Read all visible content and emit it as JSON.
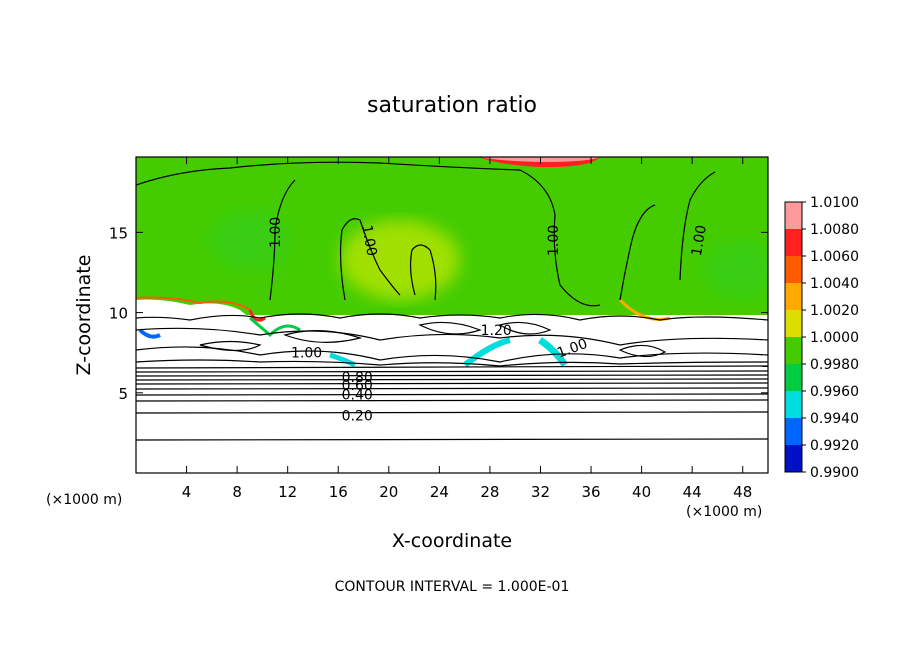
{
  "chart_data": {
    "type": "heatmap",
    "title": "saturation ratio",
    "xlabel": "X-coordinate",
    "ylabel": "Z-coordinate",
    "x_unit": "(×1000 m)",
    "y_unit": "(×1000 m)",
    "xlim": [
      0,
      50
    ],
    "ylim": [
      0,
      19.7
    ],
    "x_ticks": [
      4,
      8,
      12,
      16,
      20,
      24,
      28,
      32,
      36,
      40,
      44,
      48
    ],
    "y_ticks": [
      5,
      10,
      15
    ],
    "colorbar": {
      "levels": [
        "1.0100",
        "1.0080",
        "1.0060",
        "1.0040",
        "1.0020",
        "1.0000",
        "0.9980",
        "0.9960",
        "0.9940",
        "0.9920",
        "0.9900"
      ],
      "colors": [
        "#ff9a9a",
        "#ff2020",
        "#ff5a00",
        "#ffaa00",
        "#dddd00",
        "#44cc00",
        "#00cc44",
        "#00dddd",
        "#0066ff",
        "#0010c8",
        "#6a00aa"
      ]
    },
    "contour_labels": [
      {
        "text": "1.00",
        "x": 11,
        "z": 15.0,
        "rotate": -90
      },
      {
        "text": "1.00",
        "x": 18.5,
        "z": 14.5,
        "rotate": 80
      },
      {
        "text": "1.00",
        "x": 33,
        "z": 14.5,
        "rotate": -90
      },
      {
        "text": "1.00",
        "x": 44.5,
        "z": 14.5,
        "rotate": -80
      },
      {
        "text": "1.20",
        "x": 28.5,
        "z": 8.9,
        "rotate": 0
      },
      {
        "text": "1.00",
        "x": 13.5,
        "z": 7.5,
        "rotate": 0
      },
      {
        "text": "1.00",
        "x": 34.5,
        "z": 7.8,
        "rotate": -20
      },
      {
        "text": "0.80",
        "x": 17.5,
        "z": 6.0,
        "rotate": 0
      },
      {
        "text": "0.60",
        "x": 17.5,
        "z": 5.5,
        "rotate": 0
      },
      {
        "text": "0.40",
        "x": 17.5,
        "z": 4.9,
        "rotate": 0
      },
      {
        "text": "0.20",
        "x": 17.5,
        "z": 3.6,
        "rotate": 0
      }
    ],
    "footer": "CONTOUR INTERVAL = 1.000E-01"
  }
}
